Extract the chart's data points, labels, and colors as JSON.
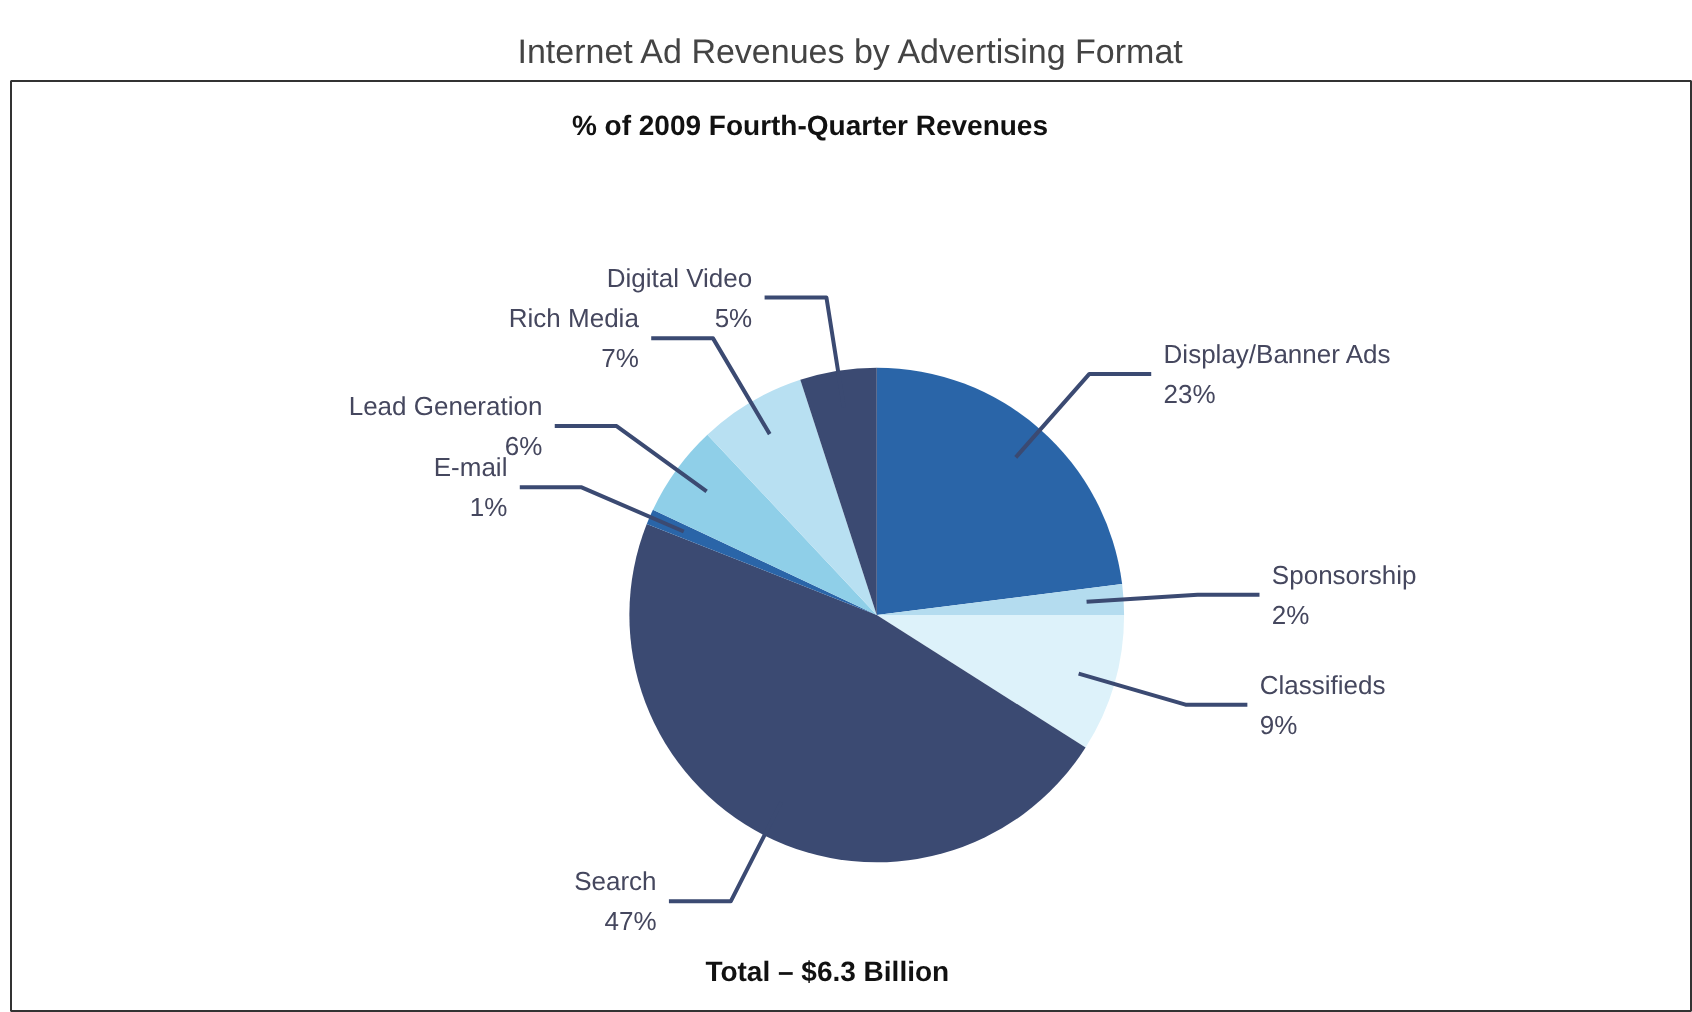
{
  "chart_data": {
    "type": "pie",
    "title": "Internet Ad Revenues by Advertising Format",
    "subtitle": "% of 2009 Fourth-Quarter Revenues",
    "categories": [
      "Display/Banner Ads",
      "Sponsorship",
      "Classifieds",
      "Search",
      "E-mail",
      "Lead Generation",
      "Rich Media",
      "Digital Video"
    ],
    "values": [
      23,
      2,
      9,
      47,
      1,
      6,
      7,
      5
    ],
    "value_labels": [
      "23%",
      "2%",
      "9%",
      "47%",
      "1%",
      "6%",
      "7%",
      "5%"
    ],
    "colors": [
      "#2a65a8",
      "#b4dcef",
      "#ddf2fa",
      "#3b4a72",
      "#2a65a8",
      "#8fcfe8",
      "#b8e0f2",
      "#3b4a72"
    ],
    "annotations": [
      "Total – $6.3 Billion"
    ]
  }
}
